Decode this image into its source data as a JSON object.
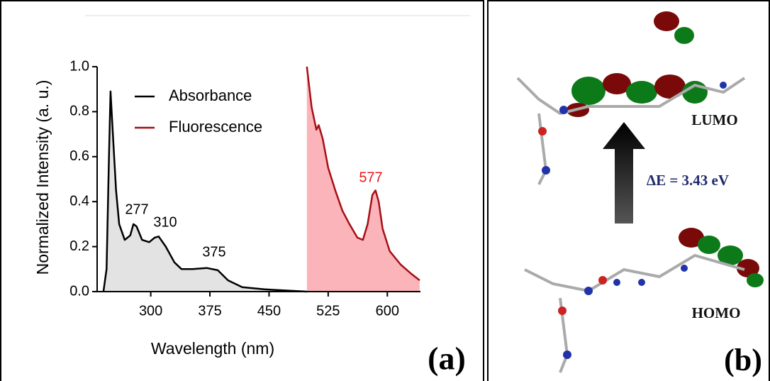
{
  "chart_data": {
    "type": "area-line",
    "xlabel": "Wavelength (nm)",
    "ylabel": "Normalized Intensity (a. u.)",
    "xlim": [
      232,
      642
    ],
    "ylim": [
      0,
      1
    ],
    "xticks": [
      300,
      375,
      450,
      525,
      600
    ],
    "yticks": [
      {
        "value": 0,
        "label": "0.0"
      },
      0.2,
      0.4,
      0.6,
      0.8,
      {
        "value": 1,
        "label": "1.0"
      }
    ],
    "legend": "upper center",
    "series": [
      {
        "name": "Absorbance",
        "color": "#000000",
        "fill": "#e3e3e3",
        "x": [
          240,
          244,
          247,
          249,
          252,
          256,
          260,
          267,
          274,
          278,
          282,
          289,
          298,
          305,
          310,
          319,
          330,
          339,
          353,
          371,
          385,
          398,
          416,
          444,
          498
        ],
        "values": [
          0.0,
          0.1,
          0.6,
          0.89,
          0.7,
          0.45,
          0.3,
          0.23,
          0.25,
          0.3,
          0.29,
          0.23,
          0.22,
          0.24,
          0.245,
          0.2,
          0.13,
          0.1,
          0.1,
          0.105,
          0.095,
          0.05,
          0.02,
          0.01,
          0.0
        ]
      },
      {
        "name": "Fluorescence",
        "color": "#a50f15",
        "fill": "#fbb4b9",
        "x": [
          498,
          504,
          510,
          513,
          518,
          525,
          534,
          543,
          552,
          562,
          569,
          575,
          581,
          585,
          589,
          594,
          603,
          617,
          630,
          641
        ],
        "values": [
          1.0,
          0.82,
          0.72,
          0.74,
          0.68,
          0.55,
          0.45,
          0.36,
          0.3,
          0.24,
          0.23,
          0.3,
          0.43,
          0.45,
          0.4,
          0.28,
          0.18,
          0.12,
          0.08,
          0.05
        ]
      }
    ],
    "annotations": [
      {
        "text": "277",
        "color": "#000000"
      },
      {
        "text": "310",
        "color": "#000000"
      },
      {
        "text": "375",
        "color": "#000000"
      },
      {
        "text": "577",
        "color": "#e8191b"
      }
    ]
  },
  "panel_a_label": "(a)",
  "panel_b": {
    "lumo_label": "LUMO",
    "gap_label": "ΔE = 3.43 eV",
    "homo_label": "HOMO",
    "panel_label": "(b)"
  }
}
